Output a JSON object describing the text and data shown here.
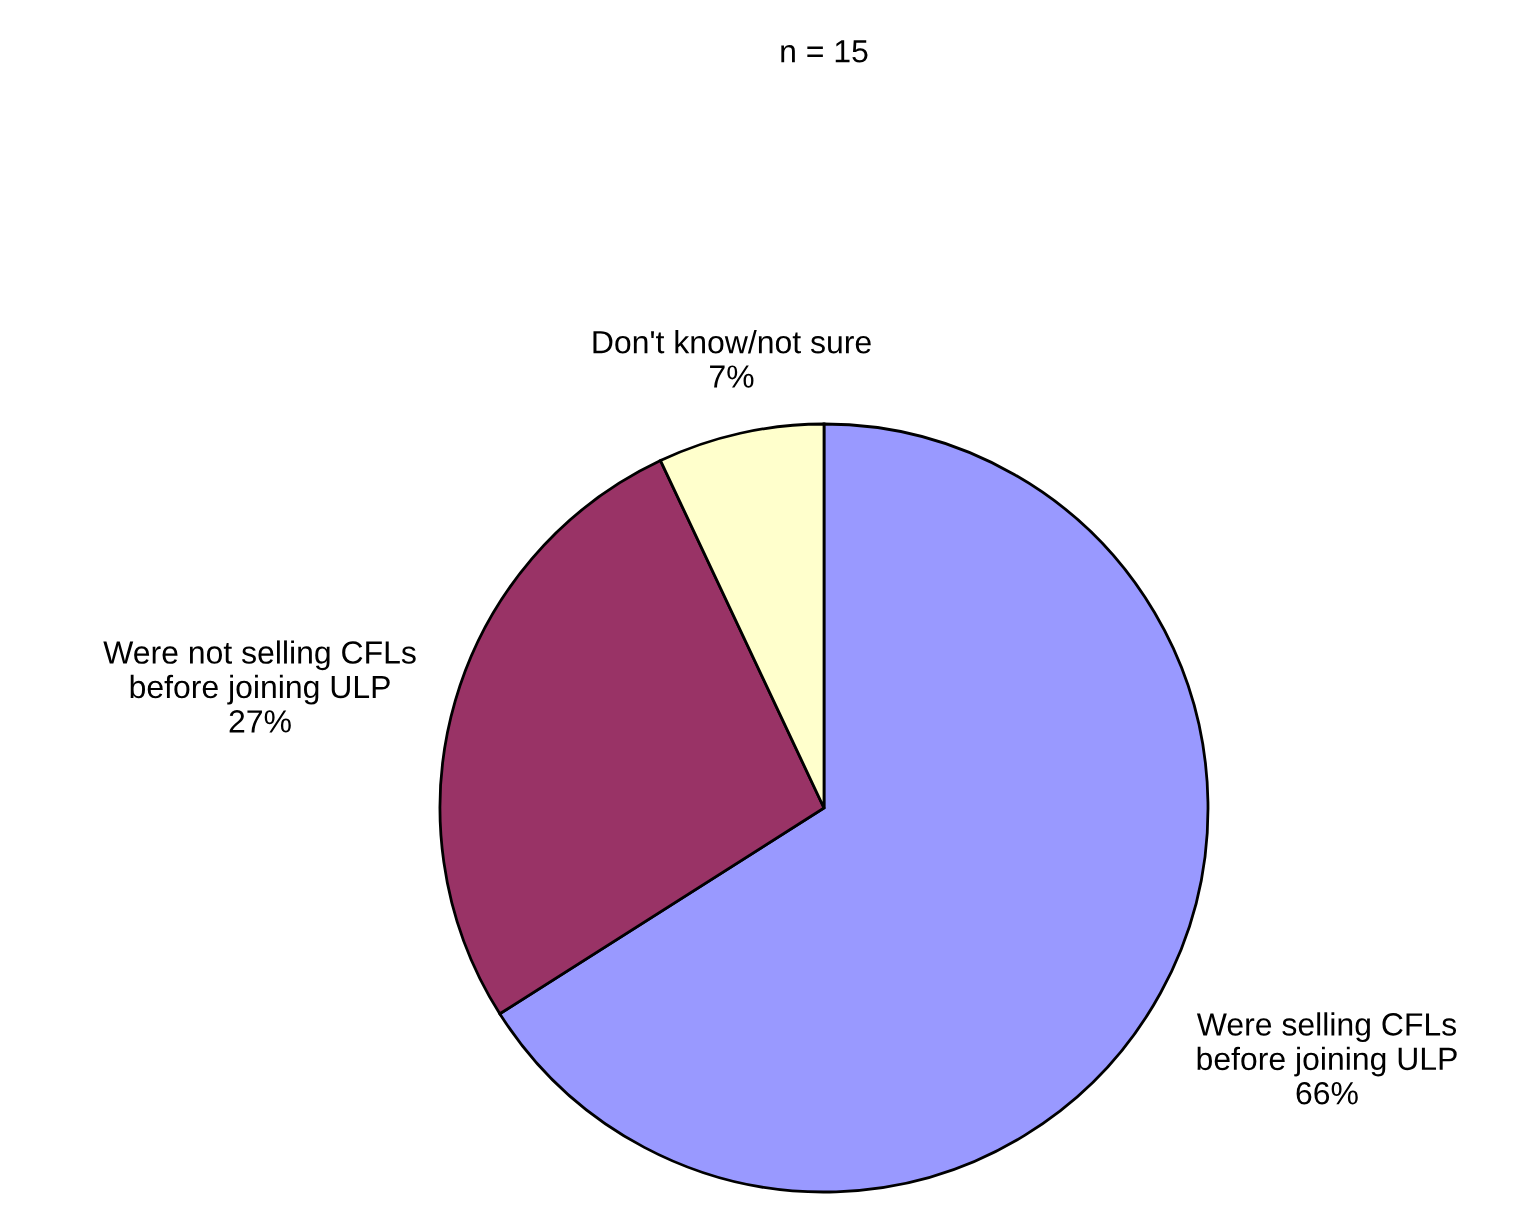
{
  "chart_data": {
    "type": "pie",
    "title": "n = 15",
    "categories": [
      "Were selling CFLs\nbefore joining ULP",
      "Were not selling CFLs\nbefore joining ULP",
      "Don't know/not sure"
    ],
    "values": [
      66,
      27,
      7
    ],
    "value_labels": [
      "66%",
      "27%",
      "7%"
    ],
    "colors": [
      "#9999ff",
      "#993366",
      "#ffffcc"
    ]
  }
}
